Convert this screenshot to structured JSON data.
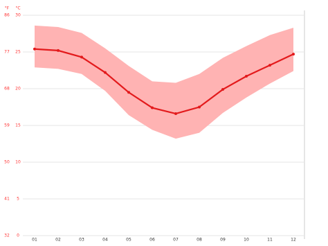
{
  "chart_data": {
    "type": "line",
    "y_unit_label": "°C",
    "y2_unit_label": "°F",
    "categories": [
      "01",
      "02",
      "03",
      "04",
      "05",
      "06",
      "07",
      "08",
      "09",
      "10",
      "11",
      "12"
    ],
    "series": [
      {
        "color": "#e31a1c",
        "values": [
          25.4,
          25.2,
          24.3,
          22.2,
          19.5,
          17.4,
          16.6,
          17.5,
          19.9,
          21.7,
          23.2,
          24.7
        ]
      }
    ],
    "band": {
      "color": "#ffb3b3",
      "upper": [
        28.6,
        28.4,
        27.6,
        25.5,
        23.1,
        21.0,
        20.8,
        22.0,
        24.2,
        25.8,
        27.3,
        28.3
      ],
      "lower": [
        22.9,
        22.7,
        22.0,
        19.7,
        16.4,
        14.4,
        13.2,
        14.0,
        16.7,
        18.8,
        20.7,
        22.4
      ]
    },
    "ylim": [
      0,
      30
    ],
    "yticks": [
      0,
      5,
      10,
      15,
      20,
      25,
      30
    ],
    "y2lim": [
      32,
      86
    ],
    "y2ticks": [
      32,
      41,
      50,
      59,
      68,
      77,
      86
    ],
    "grid": true,
    "tick_color": "#ff3333"
  }
}
